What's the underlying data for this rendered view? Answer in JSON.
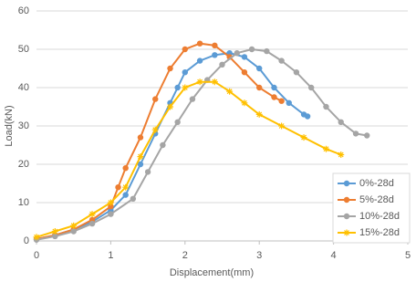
{
  "chart_data": {
    "type": "line",
    "x_label": "Displacement(mm)",
    "y_label": "Load(kN)",
    "xlim": [
      0,
      5
    ],
    "xticks": [
      0,
      1,
      2,
      3,
      4,
      5
    ],
    "ylim": [
      0,
      60
    ],
    "yticks": [
      0,
      10,
      20,
      30,
      40,
      50,
      60
    ],
    "grid": true,
    "legend": "lower right",
    "series": [
      {
        "name": "0%-28d",
        "color": "#5b9bd5",
        "marker": "circle",
        "x": [
          0,
          0.25,
          0.5,
          0.75,
          1.0,
          1.2,
          1.4,
          1.6,
          1.8,
          1.9,
          2.0,
          2.2,
          2.4,
          2.6,
          2.8,
          3.0,
          3.2,
          3.4,
          3.6,
          3.65
        ],
        "values": [
          0.5,
          1.5,
          3,
          5,
          8,
          12,
          20,
          28,
          36,
          40,
          44,
          47,
          48.5,
          49,
          48,
          45,
          40,
          36,
          33,
          32.5
        ]
      },
      {
        "name": "5%-28d",
        "color": "#ed7d31",
        "marker": "circle",
        "x": [
          0,
          0.25,
          0.5,
          0.75,
          1.0,
          1.1,
          1.2,
          1.4,
          1.6,
          1.8,
          2.0,
          2.2,
          2.4,
          2.6,
          2.8,
          3.0,
          3.2,
          3.3
        ],
        "values": [
          0.5,
          1.5,
          3,
          5.5,
          9,
          14,
          19,
          27,
          37,
          45,
          50,
          51.5,
          51,
          48,
          44,
          40,
          37.5,
          36.5
        ]
      },
      {
        "name": "10%-28d",
        "color": "#a5a5a5",
        "marker": "circle",
        "x": [
          0,
          0.25,
          0.5,
          0.75,
          1.0,
          1.3,
          1.5,
          1.7,
          1.9,
          2.1,
          2.3,
          2.5,
          2.7,
          2.9,
          3.1,
          3.3,
          3.5,
          3.7,
          3.9,
          4.1,
          4.3,
          4.45
        ],
        "values": [
          0.3,
          1.2,
          2.5,
          4.5,
          7,
          11,
          18,
          25,
          31,
          37,
          42,
          46,
          49,
          50,
          49.5,
          47,
          44,
          40,
          35,
          31,
          28,
          27.5
        ]
      },
      {
        "name": "15%-28d",
        "color": "#ffc000",
        "marker": "plus",
        "x": [
          0,
          0.25,
          0.5,
          0.75,
          1.0,
          1.2,
          1.4,
          1.6,
          1.8,
          2.0,
          2.2,
          2.4,
          2.6,
          2.8,
          3.0,
          3.3,
          3.6,
          3.9,
          4.1
        ],
        "values": [
          1,
          2.5,
          4,
          7,
          10,
          14,
          22,
          29,
          35,
          40,
          41.5,
          41.5,
          39,
          36,
          33,
          30,
          27,
          24,
          22.5
        ]
      }
    ]
  }
}
